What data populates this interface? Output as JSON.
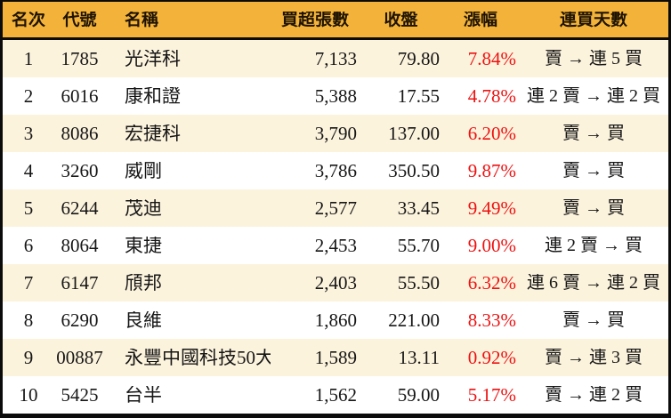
{
  "table": {
    "columns": [
      "名次",
      "代號",
      "名稱",
      "買超張數",
      "收盤",
      "漲幅",
      "連買天數"
    ],
    "rows": [
      {
        "rank": "1",
        "code": "1785",
        "name": "光洋科",
        "volume": "7,133",
        "close": "79.80",
        "change": "7.84%",
        "streak": "賣 → 連 5 買"
      },
      {
        "rank": "2",
        "code": "6016",
        "name": "康和證",
        "volume": "5,388",
        "close": "17.55",
        "change": "4.78%",
        "streak": "連 2 賣 → 連 2 買"
      },
      {
        "rank": "3",
        "code": "8086",
        "name": "宏捷科",
        "volume": "3,790",
        "close": "137.00",
        "change": "6.20%",
        "streak": "賣 → 買"
      },
      {
        "rank": "4",
        "code": "3260",
        "name": "威剛",
        "volume": "3,786",
        "close": "350.50",
        "change": "9.87%",
        "streak": "賣 → 買"
      },
      {
        "rank": "5",
        "code": "6244",
        "name": "茂迪",
        "volume": "2,577",
        "close": "33.45",
        "change": "9.49%",
        "streak": "賣 → 買"
      },
      {
        "rank": "6",
        "code": "8064",
        "name": "東捷",
        "volume": "2,453",
        "close": "55.70",
        "change": "9.00%",
        "streak": "連 2 賣 → 買"
      },
      {
        "rank": "7",
        "code": "6147",
        "name": "頎邦",
        "volume": "2,403",
        "close": "55.50",
        "change": "6.32%",
        "streak": "連 6 賣 → 連 2 買"
      },
      {
        "rank": "8",
        "code": "6290",
        "name": "良維",
        "volume": "1,860",
        "close": "221.00",
        "change": "8.33%",
        "streak": "賣 → 買"
      },
      {
        "rank": "9",
        "code": "00887",
        "name": "永豐中國科技50大",
        "volume": "1,589",
        "close": "13.11",
        "change": "0.92%",
        "streak": "賣 → 連 3 買"
      },
      {
        "rank": "10",
        "code": "5425",
        "name": "台半",
        "volume": "1,562",
        "close": "59.00",
        "change": "5.17%",
        "streak": "賣 → 連 2 買"
      }
    ]
  },
  "colors": {
    "header_bg": "#f3b33b",
    "row_alt_bg": "#fcf3dd",
    "row_bg": "#ffffff",
    "change_text": "#ee1111",
    "body_text": "#161616",
    "header_text": "#1e1300",
    "border": "#0b0b0b"
  },
  "chart_data": {
    "type": "table",
    "title": "",
    "columns": [
      "名次",
      "代號",
      "名稱",
      "買超張數",
      "收盤",
      "漲幅",
      "連買天數"
    ],
    "rows": [
      [
        1,
        "1785",
        "光洋科",
        7133,
        79.8,
        "7.84%",
        "賣 → 連 5 買"
      ],
      [
        2,
        "6016",
        "康和證",
        5388,
        17.55,
        "4.78%",
        "連 2 賣 → 連 2 買"
      ],
      [
        3,
        "8086",
        "宏捷科",
        3790,
        137.0,
        "6.20%",
        "賣 → 買"
      ],
      [
        4,
        "3260",
        "威剛",
        3786,
        350.5,
        "9.87%",
        "賣 → 買"
      ],
      [
        5,
        "6244",
        "茂迪",
        2577,
        33.45,
        "9.49%",
        "賣 → 買"
      ],
      [
        6,
        "8064",
        "東捷",
        2453,
        55.7,
        "9.00%",
        "連 2 賣 → 買"
      ],
      [
        7,
        "6147",
        "頎邦",
        2403,
        55.5,
        "6.32%",
        "連 6 賣 → 連 2 買"
      ],
      [
        8,
        "6290",
        "良維",
        1860,
        221.0,
        "8.33%",
        "賣 → 買"
      ],
      [
        9,
        "00887",
        "永豐中國科技50大",
        1589,
        13.11,
        "0.92%",
        "賣 → 連 3 買"
      ],
      [
        10,
        "5425",
        "台半",
        1562,
        59.0,
        "5.17%",
        "賣 → 連 2 買"
      ]
    ]
  }
}
